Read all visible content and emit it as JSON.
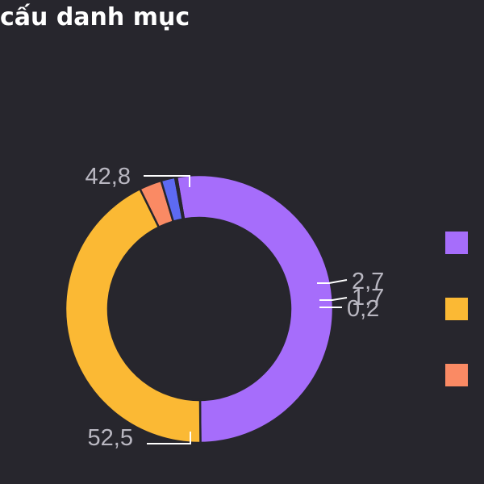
{
  "title": "cấu danh mục",
  "colors": {
    "background": "#27262d",
    "label": "#b9b7c1",
    "leader": "#ffffff"
  },
  "chart_data": {
    "type": "pie",
    "donut": true,
    "title": "cấu danh mục",
    "slices": [
      {
        "value": 52.5,
        "label": "52,5",
        "color": "#a66dfb"
      },
      {
        "value": 42.8,
        "label": "42,8",
        "color": "#fbb934"
      },
      {
        "value": 2.7,
        "label": "2,7",
        "color": "#fa8a64"
      },
      {
        "value": 1.7,
        "label": "1,7",
        "color": "#5d6af2"
      },
      {
        "value": 0.2,
        "label": "0,2",
        "color": "#69d2c1"
      }
    ],
    "legend": {
      "placement": "right",
      "visible_swatches": [
        "#a66dfb",
        "#fbb934",
        "#fa8a64"
      ]
    }
  }
}
